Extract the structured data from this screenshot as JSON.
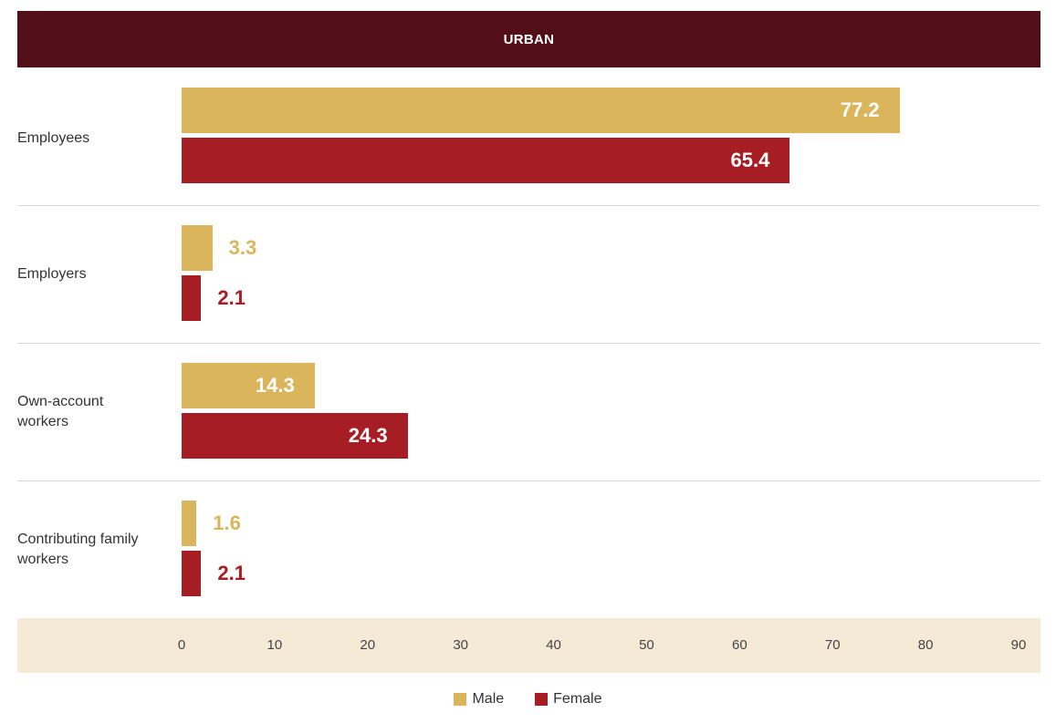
{
  "chart_data": {
    "type": "bar",
    "orientation": "horizontal",
    "title": "URBAN",
    "categories": [
      "Employees",
      "Employers",
      "Own-account workers",
      "Contributing family workers"
    ],
    "series": [
      {
        "name": "Male",
        "color": "#dbb55b",
        "values": [
          77.2,
          3.3,
          14.3,
          1.6
        ]
      },
      {
        "name": "Female",
        "color": "#a61d23",
        "values": [
          65.4,
          2.1,
          24.3,
          2.1
        ]
      }
    ],
    "xlim": [
      0,
      90
    ],
    "xticks": [
      "0",
      "10",
      "20",
      "30",
      "40",
      "50",
      "60",
      "70",
      "80",
      "90"
    ],
    "legend_position": "bottom-center"
  },
  "colors": {
    "banner_bg": "#520f17",
    "banner_text": "#ffffff",
    "axis_band_bg": "#f4ead6"
  }
}
